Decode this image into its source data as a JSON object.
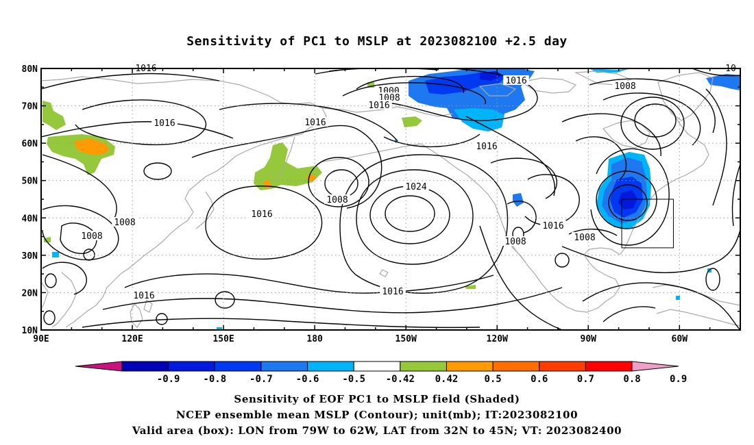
{
  "title": "Sensitivity of PC1 to MSLP at 2023082100 +2.5 day",
  "captions": [
    "Sensitivity of EOF PC1 to MSLP field (Shaded)",
    "NCEP ensemble mean MSLP (Contour); unit(mb); IT:2023082100",
    "Valid area (box): LON from 79W to 62W, LAT from 32N to 45N; VT: 2023082400"
  ],
  "map": {
    "lon_ticks": [
      "90E",
      "120E",
      "150E",
      "180",
      "150W",
      "120W",
      "90W",
      "60W"
    ],
    "lat_ticks": [
      "80N",
      "70N",
      "60N",
      "50N",
      "40N",
      "30N",
      "20N",
      "10N"
    ],
    "contour_labels": [
      "1016",
      "1016",
      "1016",
      "1000",
      "1008",
      "1016",
      "1016",
      "1008",
      "1016",
      "1008",
      "1024",
      "1008",
      "1016",
      "1016",
      "1008",
      "1008",
      "1016",
      "1016",
      "1008",
      "10"
    ],
    "valid_box": {
      "lon_min": -79,
      "lon_max": -62,
      "lat_min": 32,
      "lat_max": 45
    }
  },
  "colorbar": {
    "labels": [
      "-0.9",
      "-0.8",
      "-0.7",
      "-0.6",
      "-0.5",
      "-0.42",
      "0.42",
      "0.5",
      "0.6",
      "0.7",
      "0.8",
      "0.9"
    ],
    "colors": [
      "#c8137e",
      "#0000b4",
      "#0019dc",
      "#0039f0",
      "#1e78f0",
      "#00b4fa",
      "#ffffff",
      "#96c83c",
      "#ff9b00",
      "#ff6e00",
      "#ff3c00",
      "#ff0000",
      "#f0a0c8"
    ]
  }
}
